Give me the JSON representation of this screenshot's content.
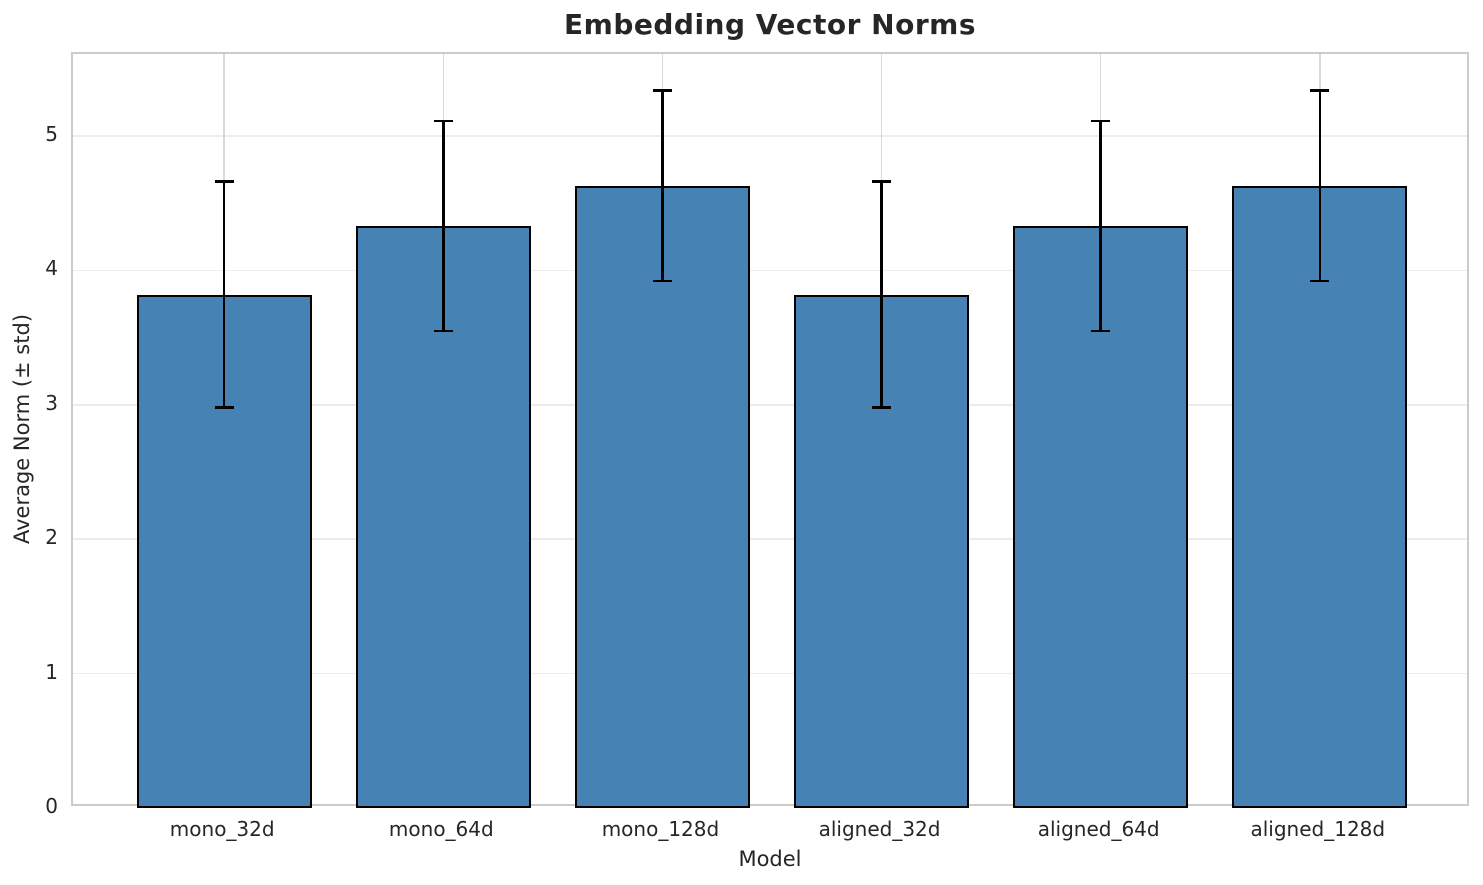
{
  "chart_data": {
    "type": "bar",
    "title": "Embedding Vector Norms",
    "xlabel": "Model",
    "ylabel": "Average Norm (± std)",
    "categories": [
      "mono_32d",
      "mono_64d",
      "mono_128d",
      "aligned_32d",
      "aligned_64d",
      "aligned_128d"
    ],
    "series": [
      {
        "name": "Average Norm",
        "values": [
          3.82,
          4.33,
          4.63,
          3.82,
          4.33,
          4.63
        ],
        "errors": [
          0.84,
          0.78,
          0.71,
          0.84,
          0.78,
          0.71
        ]
      }
    ],
    "ylim": [
      0,
      5.61
    ],
    "yticks": [
      0,
      1,
      2,
      3,
      4,
      5
    ],
    "grid": true,
    "legend_position": "none",
    "bar_color": "#4682b4",
    "bar_edge_color": "#000000",
    "error_bar_color": "#000000",
    "grid_color_horizontal": "#ececec",
    "grid_color_vertical": "#d9d9d9",
    "title_color": "#262626",
    "text_color": "#262626",
    "background_color": "#ffffff"
  }
}
